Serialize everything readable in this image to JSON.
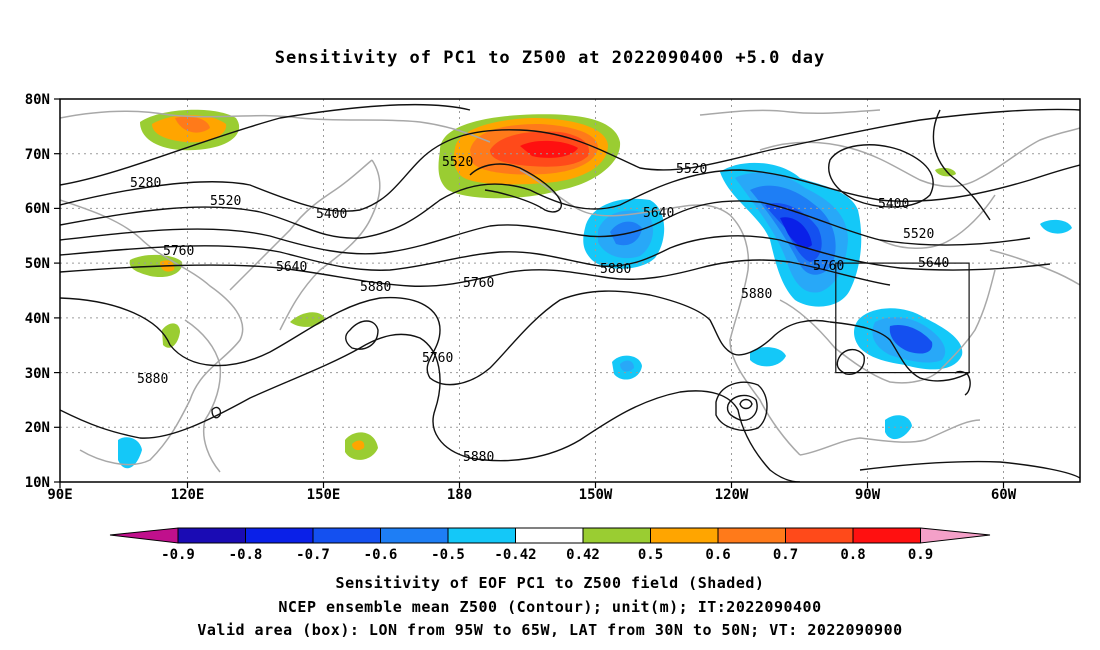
{
  "title": "Sensitivity of PC1 to Z500 at 2022090400 +5.0 day",
  "map": {
    "lat_ticks": [
      "80N",
      "70N",
      "60N",
      "50N",
      "40N",
      "30N",
      "20N",
      "10N"
    ],
    "lon_ticks": [
      "90E",
      "120E",
      "150E",
      "180",
      "150W",
      "120W",
      "90W",
      "60W"
    ],
    "lon_range": [
      "90E",
      "60W (+20°)"
    ],
    "lat_range": [
      "10N",
      "80N"
    ],
    "grid": "dotted",
    "contour_labels": [
      "5280",
      "5400",
      "5520",
      "5520",
      "5520",
      "5520",
      "5400",
      "5640",
      "5640",
      "5640",
      "5760",
      "5760",
      "5760",
      "5760",
      "5880",
      "5880",
      "5880",
      "5880",
      "5880"
    ],
    "valid_box": {
      "lon_min": "95W",
      "lon_max": "65W",
      "lat_min": "30N",
      "lat_max": "50N"
    }
  },
  "colorbar": {
    "labels": [
      "-0.9",
      "-0.8",
      "-0.7",
      "-0.6",
      "-0.5",
      "-0.42",
      "0.42",
      "0.5",
      "0.6",
      "0.7",
      "0.8",
      "0.9"
    ],
    "colors": [
      "#c0108c",
      "#1a0bb4",
      "#0a20e8",
      "#1450f0",
      "#1e7ef5",
      "#28a8f8",
      "#14c8f8",
      "#ffffff",
      "#9acd32",
      "#ffa500",
      "#ff7a1a",
      "#ff4a1a",
      "#ff1010",
      "#f4a0c8"
    ]
  },
  "captions": {
    "line1": "Sensitivity of EOF PC1 to Z500 field (Shaded)",
    "line2": "NCEP ensemble mean Z500 (Contour); unit(m); IT:2022090400",
    "line3": "Valid area (box): LON from 95W to 65W, LAT from 30N to 50N; VT: 2022090900"
  }
}
